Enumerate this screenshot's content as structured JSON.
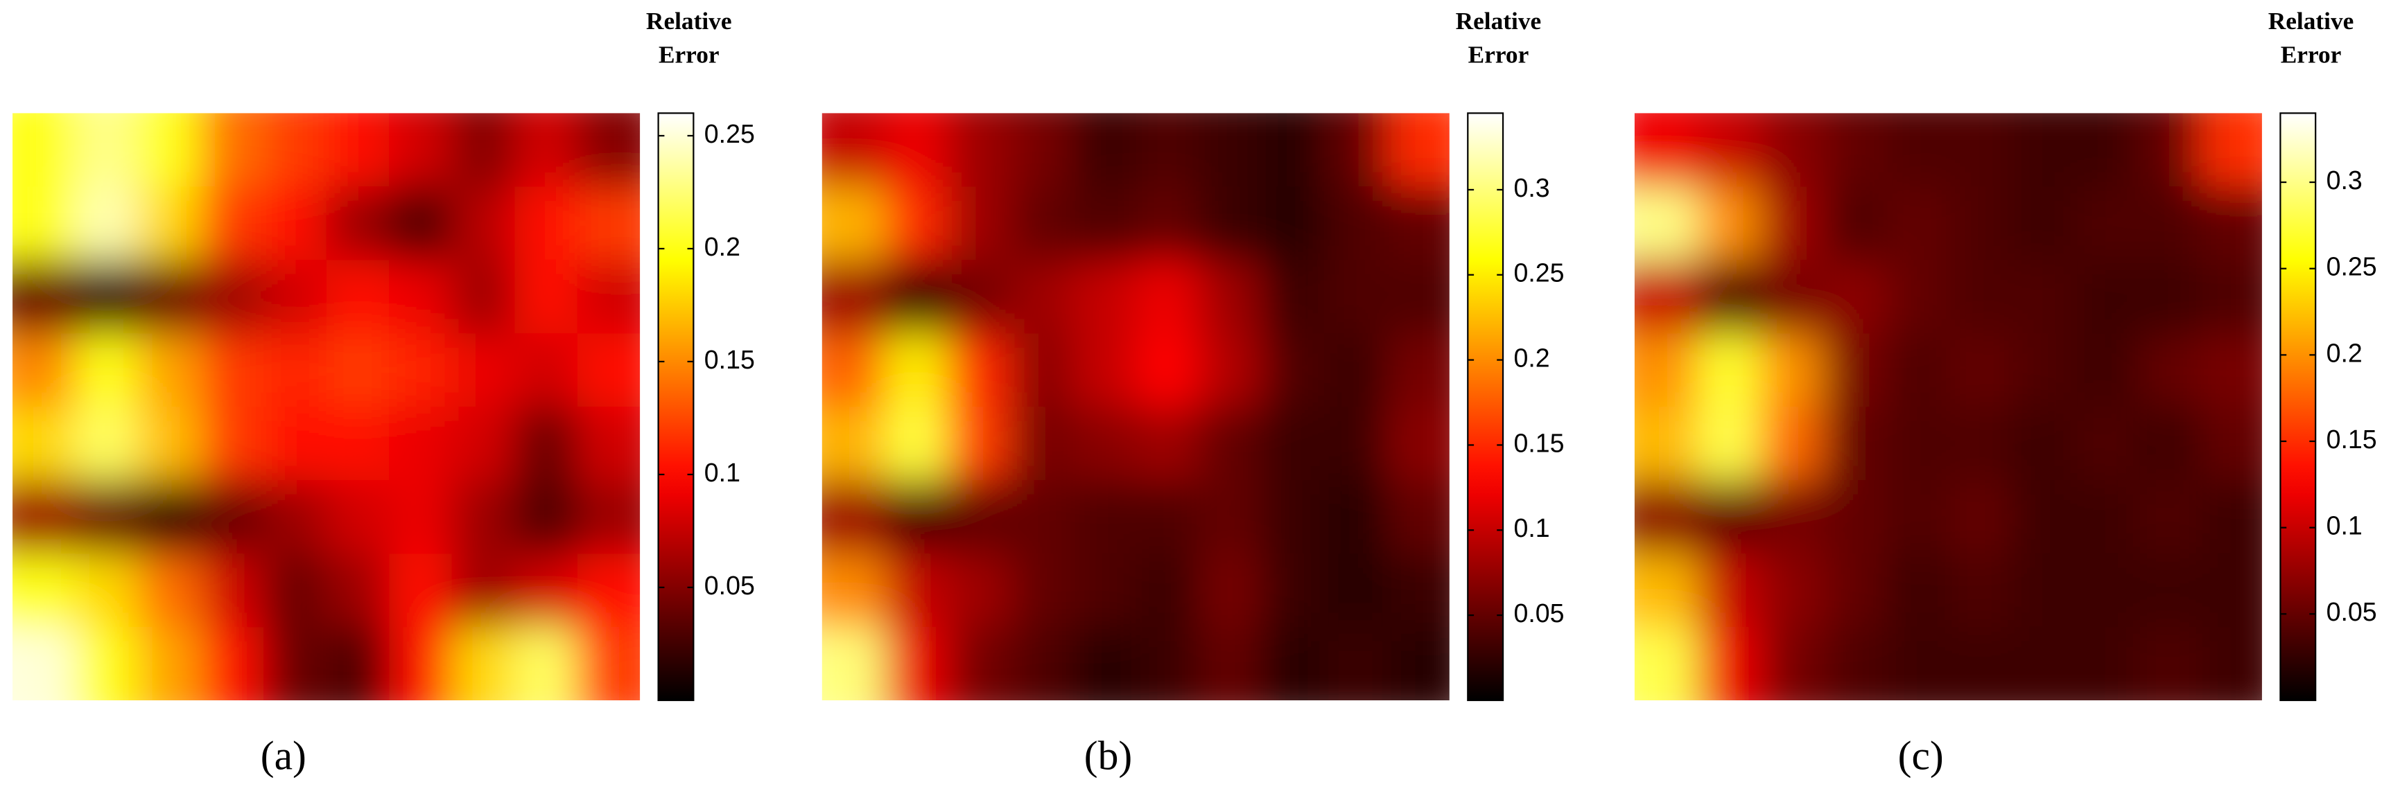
{
  "chart_data": [
    {
      "type": "heatmap",
      "label": "(a)",
      "colorbar_title": "Relative Error",
      "colormap": "hot",
      "zlim": [
        0,
        0.26
      ],
      "zticks": [
        0.05,
        0.1,
        0.15,
        0.2,
        0.25
      ],
      "z": [
        [
          0.2,
          0.23,
          0.2,
          0.14,
          0.12,
          0.1,
          0.08,
          0.05,
          0.08,
          0.05
        ],
        [
          0.2,
          0.24,
          0.18,
          0.12,
          0.1,
          0.06,
          0.03,
          0.07,
          0.1,
          0.12
        ],
        [
          0.04,
          0.02,
          0.04,
          0.06,
          0.08,
          0.1,
          0.09,
          0.06,
          0.1,
          0.08
        ],
        [
          0.15,
          0.2,
          0.16,
          0.12,
          0.11,
          0.12,
          0.11,
          0.09,
          0.08,
          0.1
        ],
        [
          0.18,
          0.22,
          0.17,
          0.12,
          0.1,
          0.1,
          0.09,
          0.08,
          0.04,
          0.08
        ],
        [
          0.06,
          0.04,
          0.02,
          0.04,
          0.06,
          0.08,
          0.09,
          0.06,
          0.03,
          0.06
        ],
        [
          0.2,
          0.18,
          0.14,
          0.08,
          0.04,
          0.06,
          0.1,
          0.06,
          0.08,
          0.1
        ],
        [
          0.25,
          0.2,
          0.16,
          0.1,
          0.04,
          0.03,
          0.1,
          0.18,
          0.22,
          0.12
        ]
      ]
    },
    {
      "type": "heatmap",
      "label": "(b)",
      "colorbar_title": "Relative Error",
      "colormap": "hot",
      "zlim": [
        0,
        0.345
      ],
      "zticks": [
        0.05,
        0.1,
        0.15,
        0.2,
        0.25,
        0.3
      ],
      "z": [
        [
          0.1,
          0.12,
          0.08,
          0.06,
          0.03,
          0.04,
          0.03,
          0.02,
          0.05,
          0.15
        ],
        [
          0.22,
          0.15,
          0.08,
          0.05,
          0.04,
          0.05,
          0.03,
          0.02,
          0.04,
          0.05
        ],
        [
          0.08,
          0.03,
          0.06,
          0.08,
          0.1,
          0.12,
          0.08,
          0.03,
          0.04,
          0.04
        ],
        [
          0.18,
          0.25,
          0.15,
          0.07,
          0.1,
          0.13,
          0.09,
          0.04,
          0.03,
          0.06
        ],
        [
          0.22,
          0.28,
          0.16,
          0.06,
          0.07,
          0.08,
          0.05,
          0.03,
          0.03,
          0.07
        ],
        [
          0.08,
          0.04,
          0.05,
          0.05,
          0.04,
          0.04,
          0.05,
          0.03,
          0.02,
          0.05
        ],
        [
          0.2,
          0.1,
          0.08,
          0.05,
          0.04,
          0.03,
          0.06,
          0.03,
          0.02,
          0.03
        ],
        [
          0.3,
          0.12,
          0.06,
          0.04,
          0.02,
          0.03,
          0.05,
          0.02,
          0.03,
          0.02
        ]
      ]
    },
    {
      "type": "heatmap",
      "label": "(c)",
      "colorbar_title": "Relative Error",
      "colormap": "hot",
      "zlim": [
        0,
        0.34
      ],
      "zticks": [
        0.05,
        0.1,
        0.15,
        0.2,
        0.25,
        0.3
      ],
      "z": [
        [
          0.12,
          0.1,
          0.07,
          0.05,
          0.04,
          0.04,
          0.03,
          0.03,
          0.05,
          0.15
        ],
        [
          0.3,
          0.2,
          0.08,
          0.04,
          0.05,
          0.04,
          0.03,
          0.04,
          0.04,
          0.05
        ],
        [
          0.1,
          0.04,
          0.06,
          0.07,
          0.05,
          0.04,
          0.04,
          0.03,
          0.03,
          0.04
        ],
        [
          0.2,
          0.27,
          0.2,
          0.06,
          0.04,
          0.05,
          0.04,
          0.03,
          0.05,
          0.06
        ],
        [
          0.22,
          0.28,
          0.18,
          0.05,
          0.04,
          0.04,
          0.03,
          0.04,
          0.03,
          0.05
        ],
        [
          0.07,
          0.05,
          0.06,
          0.05,
          0.04,
          0.05,
          0.03,
          0.03,
          0.04,
          0.03
        ],
        [
          0.22,
          0.1,
          0.07,
          0.05,
          0.03,
          0.04,
          0.03,
          0.03,
          0.03,
          0.03
        ],
        [
          0.28,
          0.12,
          0.06,
          0.04,
          0.03,
          0.03,
          0.03,
          0.03,
          0.04,
          0.03
        ]
      ]
    }
  ]
}
